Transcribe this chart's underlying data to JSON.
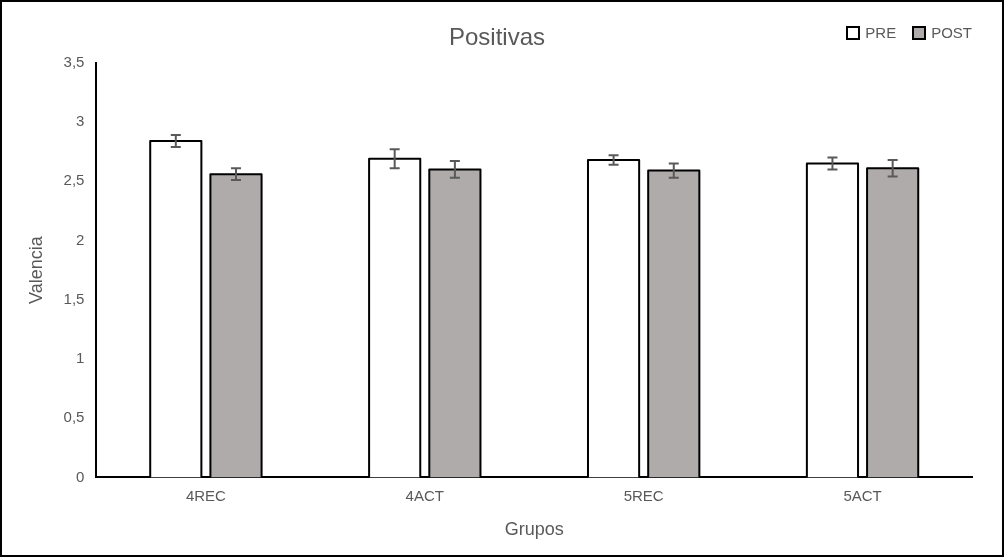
{
  "chart_data": {
    "type": "bar",
    "title": "Positivas",
    "xlabel": "Grupos",
    "ylabel": "Valencia",
    "categories": [
      "4REC",
      "4ACT",
      "5REC",
      "5ACT"
    ],
    "series": [
      {
        "name": "PRE",
        "color": "#ffffff",
        "values": [
          2.84,
          2.69,
          2.68,
          2.65
        ],
        "errors": [
          0.05,
          0.08,
          0.04,
          0.05
        ]
      },
      {
        "name": "POST",
        "color": "#afabab",
        "values": [
          2.56,
          2.6,
          2.59,
          2.61
        ],
        "errors": [
          0.05,
          0.07,
          0.06,
          0.07
        ]
      }
    ],
    "ylim": [
      0,
      3.5
    ],
    "yticks": [
      {
        "value": 0,
        "label": "0"
      },
      {
        "value": 0.5,
        "label": "0,5"
      },
      {
        "value": 1,
        "label": "1"
      },
      {
        "value": 1.5,
        "label": "1,5"
      },
      {
        "value": 2,
        "label": "2"
      },
      {
        "value": 2.5,
        "label": "2,5"
      },
      {
        "value": 3,
        "label": "3"
      },
      {
        "value": 3.5,
        "label": "3,5"
      }
    ],
    "grid": false,
    "legend": "top right"
  }
}
